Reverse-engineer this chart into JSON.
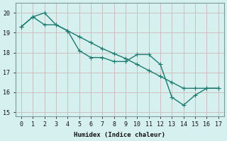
{
  "xlabel": "Humidex (Indice chaleur)",
  "bg_color": "#d6f0ef",
  "grid_color": "#b8d8d5",
  "line_color": "#1a7a6e",
  "xlim": [
    -0.5,
    17.5
  ],
  "ylim": [
    14.8,
    20.5
  ],
  "yticks": [
    15,
    16,
    17,
    18,
    19,
    20
  ],
  "xticks": [
    0,
    1,
    2,
    3,
    4,
    5,
    6,
    7,
    8,
    9,
    10,
    11,
    12,
    13,
    14,
    15,
    16,
    17
  ],
  "series1_x": [
    0,
    1,
    2,
    3,
    4,
    5,
    6,
    7,
    8,
    9,
    10,
    11,
    12,
    13,
    14,
    15,
    16,
    17
  ],
  "series1_y": [
    19.3,
    19.8,
    20.0,
    19.4,
    19.1,
    18.1,
    17.75,
    17.75,
    17.55,
    17.55,
    17.9,
    17.9,
    17.4,
    15.75,
    15.35,
    15.85,
    16.2,
    16.2
  ],
  "series2_x": [
    0,
    1,
    2,
    3,
    4,
    5,
    6,
    7,
    8,
    9,
    10,
    11,
    12,
    13,
    14,
    15,
    16,
    17
  ],
  "series2_y": [
    19.3,
    19.8,
    19.4,
    19.4,
    19.1,
    18.8,
    18.5,
    18.2,
    17.95,
    17.7,
    17.4,
    17.1,
    16.8,
    16.5,
    16.2,
    16.2,
    16.2,
    16.2
  ],
  "marker_size": 2.5,
  "linewidth": 1.0
}
